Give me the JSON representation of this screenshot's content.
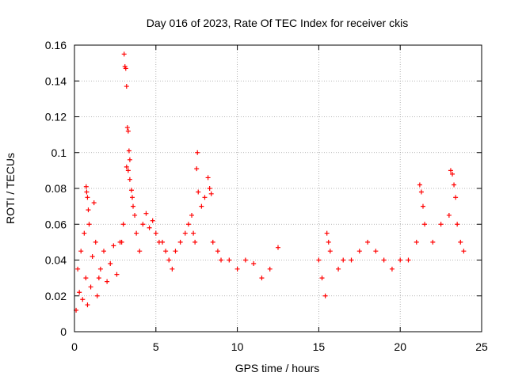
{
  "chart_data": {
    "type": "scatter",
    "title": "Day 016 of 2023, Rate Of TEC Index for receiver ckis",
    "xlabel": "GPS time / hours",
    "ylabel": "ROTI / TECUs",
    "xlim": [
      0,
      25
    ],
    "ylim": [
      0,
      0.16
    ],
    "x_ticks": [
      "0",
      "5",
      "10",
      "15",
      "20",
      "25"
    ],
    "y_ticks": [
      "0",
      "0.02",
      "0.04",
      "0.06",
      "0.08",
      "0.1",
      "0.12",
      "0.14",
      "0.16"
    ],
    "grid": true,
    "marker": "+",
    "color": "#ff0000",
    "series": [
      {
        "points": [
          [
            0.1,
            0.012
          ],
          [
            0.2,
            0.035
          ],
          [
            0.3,
            0.022
          ],
          [
            0.4,
            0.045
          ],
          [
            0.5,
            0.018
          ],
          [
            0.6,
            0.055
          ],
          [
            0.7,
            0.03
          ],
          [
            0.8,
            0.015
          ],
          [
            0.9,
            0.06
          ],
          [
            1.0,
            0.025
          ],
          [
            0.72,
            0.081
          ],
          [
            0.75,
            0.078
          ],
          [
            0.8,
            0.075
          ],
          [
            0.85,
            0.068
          ],
          [
            1.1,
            0.042
          ],
          [
            1.2,
            0.072
          ],
          [
            1.3,
            0.05
          ],
          [
            1.4,
            0.02
          ],
          [
            1.5,
            0.03
          ],
          [
            1.6,
            0.035
          ],
          [
            1.8,
            0.045
          ],
          [
            2.0,
            0.028
          ],
          [
            2.2,
            0.038
          ],
          [
            2.4,
            0.048
          ],
          [
            2.6,
            0.032
          ],
          [
            2.8,
            0.05
          ],
          [
            2.9,
            0.05
          ],
          [
            3.0,
            0.06
          ],
          [
            3.05,
            0.155
          ],
          [
            3.1,
            0.148
          ],
          [
            3.15,
            0.147
          ],
          [
            3.2,
            0.137
          ],
          [
            3.25,
            0.114
          ],
          [
            3.3,
            0.112
          ],
          [
            3.35,
            0.101
          ],
          [
            3.4,
            0.096
          ],
          [
            3.2,
            0.092
          ],
          [
            3.3,
            0.09
          ],
          [
            3.4,
            0.085
          ],
          [
            3.5,
            0.079
          ],
          [
            3.55,
            0.075
          ],
          [
            3.6,
            0.07
          ],
          [
            3.7,
            0.065
          ],
          [
            3.8,
            0.055
          ],
          [
            4.0,
            0.045
          ],
          [
            4.2,
            0.06
          ],
          [
            4.4,
            0.066
          ],
          [
            4.6,
            0.058
          ],
          [
            4.8,
            0.062
          ],
          [
            5.0,
            0.055
          ],
          [
            5.2,
            0.05
          ],
          [
            5.4,
            0.05
          ],
          [
            5.6,
            0.045
          ],
          [
            5.8,
            0.04
          ],
          [
            6.0,
            0.035
          ],
          [
            6.2,
            0.045
          ],
          [
            6.5,
            0.05
          ],
          [
            6.8,
            0.055
          ],
          [
            7.0,
            0.06
          ],
          [
            7.2,
            0.065
          ],
          [
            7.3,
            0.055
          ],
          [
            7.4,
            0.05
          ],
          [
            7.5,
            0.091
          ],
          [
            7.55,
            0.1
          ],
          [
            7.6,
            0.078
          ],
          [
            7.8,
            0.07
          ],
          [
            8.0,
            0.075
          ],
          [
            8.2,
            0.086
          ],
          [
            8.3,
            0.08
          ],
          [
            8.4,
            0.077
          ],
          [
            8.5,
            0.05
          ],
          [
            8.8,
            0.045
          ],
          [
            9.0,
            0.04
          ],
          [
            9.5,
            0.04
          ],
          [
            10.0,
            0.035
          ],
          [
            10.5,
            0.04
          ],
          [
            11.0,
            0.038
          ],
          [
            11.5,
            0.03
          ],
          [
            12.0,
            0.035
          ],
          [
            12.5,
            0.047
          ],
          [
            15.0,
            0.04
          ],
          [
            15.2,
            0.03
          ],
          [
            15.4,
            0.02
          ],
          [
            15.5,
            0.055
          ],
          [
            15.6,
            0.05
          ],
          [
            15.7,
            0.045
          ],
          [
            16.2,
            0.035
          ],
          [
            16.5,
            0.04
          ],
          [
            17.0,
            0.04
          ],
          [
            17.5,
            0.045
          ],
          [
            18.0,
            0.05
          ],
          [
            18.5,
            0.045
          ],
          [
            19.0,
            0.04
          ],
          [
            19.5,
            0.035
          ],
          [
            20.0,
            0.04
          ],
          [
            20.5,
            0.04
          ],
          [
            21.0,
            0.05
          ],
          [
            21.2,
            0.082
          ],
          [
            21.3,
            0.078
          ],
          [
            21.4,
            0.07
          ],
          [
            21.5,
            0.06
          ],
          [
            22.0,
            0.05
          ],
          [
            22.5,
            0.06
          ],
          [
            23.0,
            0.065
          ],
          [
            23.1,
            0.09
          ],
          [
            23.2,
            0.088
          ],
          [
            23.3,
            0.082
          ],
          [
            23.4,
            0.075
          ],
          [
            23.5,
            0.06
          ],
          [
            23.7,
            0.05
          ],
          [
            23.9,
            0.045
          ]
        ]
      }
    ]
  }
}
